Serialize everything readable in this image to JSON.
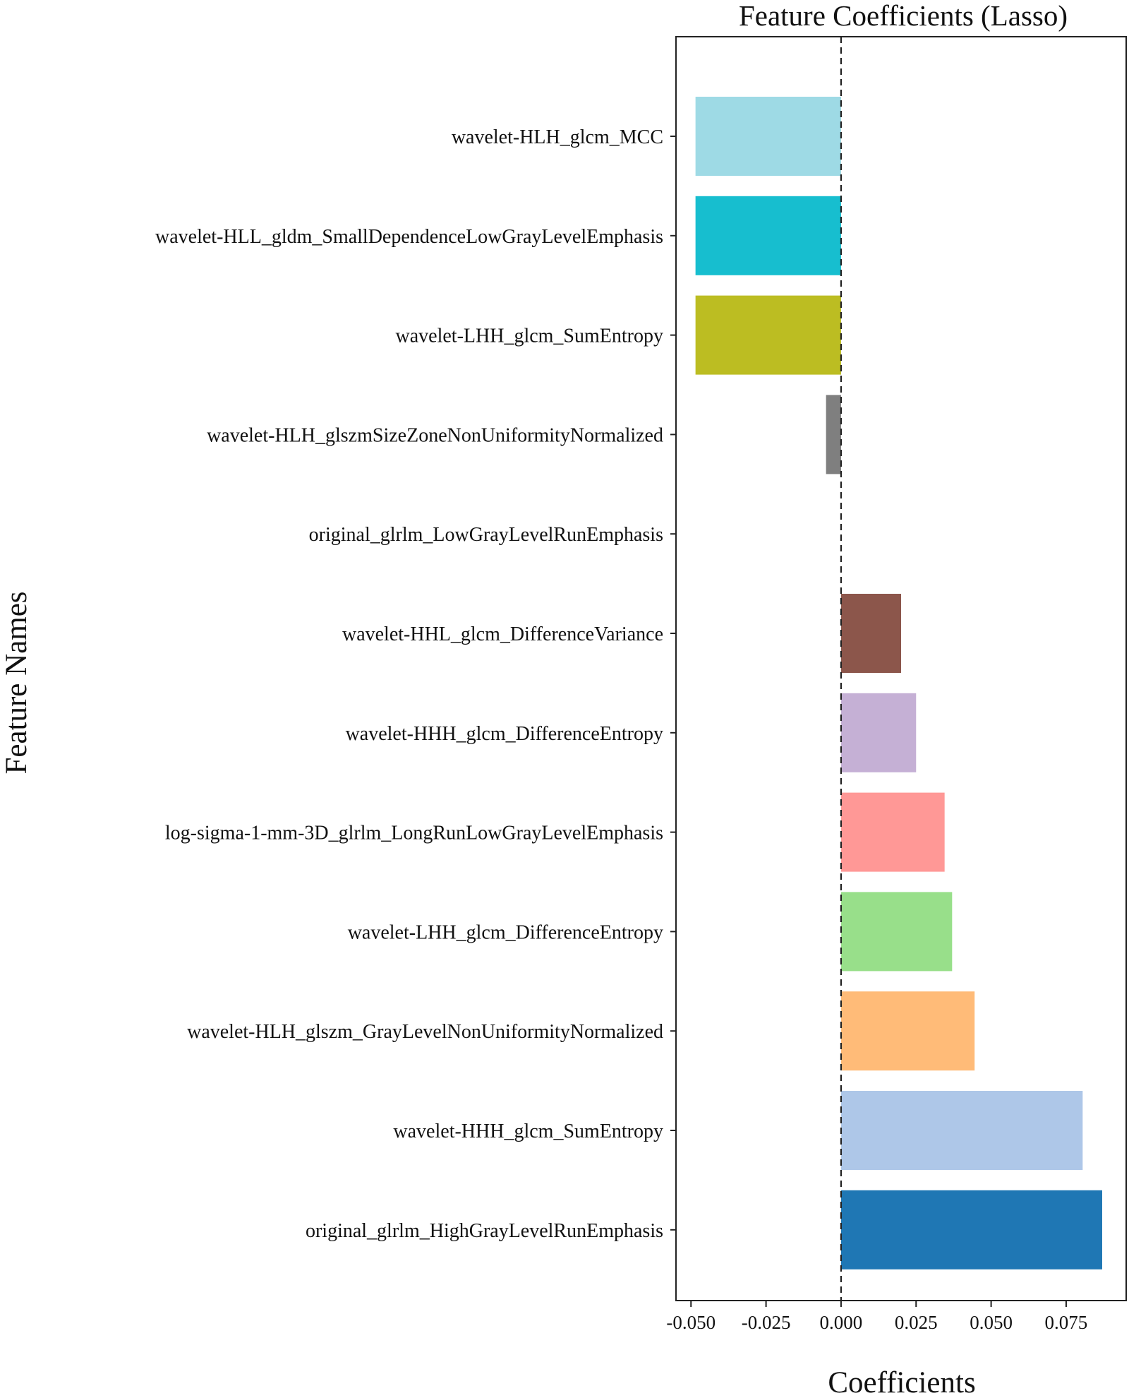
{
  "chart_data": {
    "type": "bar",
    "orientation": "horizontal",
    "title": "Feature Coefficients (Lasso)",
    "xlabel": "Coefficients",
    "ylabel": "Feature Names",
    "xlim": [
      -0.055,
      0.095
    ],
    "xticks": [
      -0.05,
      -0.025,
      0.0,
      0.025,
      0.05,
      0.075
    ],
    "xtick_labels": [
      "-0.050",
      "-0.025",
      "0.000",
      "0.025",
      "0.050",
      "0.075"
    ],
    "zero_line": "dashed",
    "grid": false,
    "legend": "none",
    "categories": [
      "wavelet-HLH_glcm_MCC",
      "wavelet-HLL_gldm_SmallDependenceLowGrayLevelEmphasis",
      "wavelet-LHH_glcm_SumEntropy",
      "wavelet-HLH_glszmSizeZoneNonUniformityNormalized",
      "original_glrlm_LowGrayLevelRunEmphasis",
      "wavelet-HHL_glcm_DifferenceVariance",
      "wavelet-HHH_glcm_DifferenceEntropy",
      "log-sigma-1-mm-3D_glrlm_LongRunLowGrayLevelEmphasis",
      "wavelet-LHH_glcm_DifferenceEntropy",
      "wavelet-HLH_glszm_GrayLevelNonUniformityNormalized",
      "wavelet-HHH_glcm_SumEntropy",
      "original_glrlm_HighGrayLevelRunEmphasis"
    ],
    "values": [
      -0.0485,
      -0.0485,
      -0.0485,
      -0.005,
      0.0,
      0.02,
      0.025,
      0.0345,
      0.037,
      0.0445,
      0.0805,
      0.087
    ],
    "colors": [
      "#9edae5",
      "#17becf",
      "#bcbd22",
      "#7f7f7f",
      "#c7c7c7",
      "#8c564b",
      "#c5b0d5",
      "#ff9896",
      "#98df8a",
      "#ffbb78",
      "#aec7e8",
      "#1f77b4"
    ]
  }
}
